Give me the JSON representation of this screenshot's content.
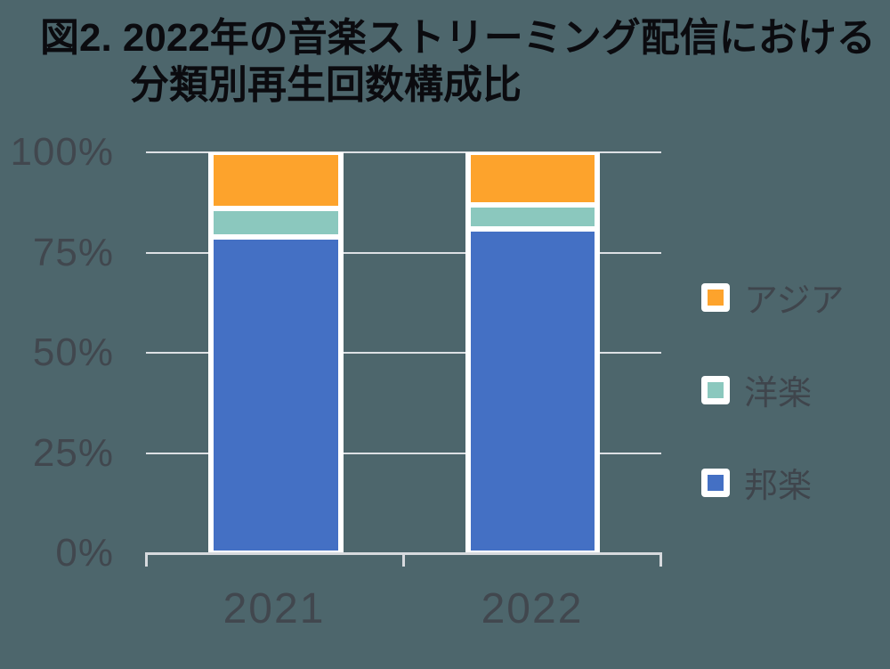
{
  "title": {
    "line1": "図2. 2022年の音楽ストリーミング配信における",
    "line2": "分類別再生回数構成比"
  },
  "chart_data": {
    "type": "bar",
    "subtype": "stacked-100-percent",
    "title": "図2. 2022年の音楽ストリーミング配信における分類別再生回数構成比",
    "categories": [
      "2021",
      "2022"
    ],
    "series": [
      {
        "name": "アジア",
        "color": "#FDA32C",
        "values": [
          14,
          13
        ]
      },
      {
        "name": "洋楽",
        "color": "#8BC8BE",
        "values": [
          7,
          6
        ]
      },
      {
        "name": "邦楽",
        "color": "#4470C4",
        "values": [
          79,
          81
        ]
      }
    ],
    "stack_order_note": "series listed top-to-bottom of each bar; legend shown in same order",
    "xlabel": "",
    "ylabel": "",
    "ylim": [
      0,
      100
    ],
    "y_tick_labels": [
      "100%",
      "75%",
      "50%",
      "25%",
      "0%"
    ],
    "grid": true,
    "legend_position": "right"
  },
  "colors": {
    "background": "#4D666C",
    "gridline": "#DDE0E4",
    "axis_line": "#D7DADE",
    "tick_label": "#41474E",
    "legend_label": "#3F454C",
    "title_text": "#0B0B0F",
    "bar_border": "#FFFFFF",
    "series_asia": "#FDA32C",
    "series_yogaku": "#8BC8BE",
    "series_hogaku": "#4470C4"
  }
}
